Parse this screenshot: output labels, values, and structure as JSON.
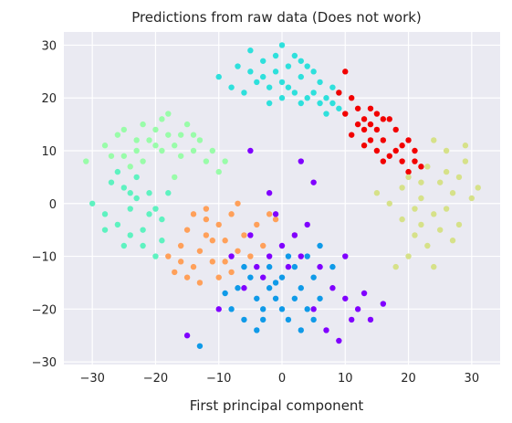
{
  "chart_data": {
    "type": "scatter",
    "title": "Predictions from raw data (Does not work)",
    "xlabel": "First principal component",
    "ylabel": "",
    "xlim": [
      -34.5,
      34.5
    ],
    "ylim": [
      -30.5,
      32.5
    ],
    "xticks": [
      -30,
      -20,
      -10,
      0,
      10,
      20,
      30
    ],
    "yticks": [
      -30,
      -20,
      -10,
      0,
      10,
      20,
      30
    ],
    "xtick_labels": [
      "−30",
      "−20",
      "−10",
      "0",
      "10",
      "20",
      "30"
    ],
    "ytick_labels": [
      "−30",
      "−20",
      "−10",
      "0",
      "10",
      "20",
      "30"
    ],
    "grid": true,
    "background": "#eaeaf2",
    "legend": "none",
    "series": [
      {
        "color": "#2ee0dc",
        "points": [
          [
            -10,
            24
          ],
          [
            -7,
            26
          ],
          [
            -5,
            29
          ],
          [
            -3,
            27
          ],
          [
            -1,
            25
          ],
          [
            0,
            30
          ],
          [
            1,
            22
          ],
          [
            3,
            24
          ],
          [
            5,
            21
          ],
          [
            7,
            20
          ],
          [
            9,
            18
          ],
          [
            -2,
            22
          ],
          [
            2,
            28
          ],
          [
            4,
            26
          ],
          [
            6,
            23
          ],
          [
            -4,
            23
          ],
          [
            8,
            22
          ],
          [
            0,
            20
          ],
          [
            -6,
            21
          ],
          [
            3,
            19
          ],
          [
            -1,
            28
          ],
          [
            5,
            25
          ],
          [
            2,
            21
          ],
          [
            -3,
            24
          ],
          [
            7,
            17
          ],
          [
            1,
            26
          ],
          [
            -8,
            22
          ],
          [
            4,
            20
          ],
          [
            6,
            19
          ],
          [
            -2,
            19
          ],
          [
            9,
            21
          ],
          [
            0,
            23
          ],
          [
            -5,
            25
          ],
          [
            3,
            27
          ],
          [
            8,
            19
          ]
        ]
      },
      {
        "color": "#f20000",
        "points": [
          [
            9,
            21
          ],
          [
            10,
            17
          ],
          [
            12,
            15
          ],
          [
            13,
            16
          ],
          [
            14,
            18
          ],
          [
            15,
            14
          ],
          [
            16,
            12
          ],
          [
            17,
            16
          ],
          [
            18,
            10
          ],
          [
            19,
            8
          ],
          [
            20,
            6
          ],
          [
            21,
            10
          ],
          [
            22,
            7
          ],
          [
            14,
            12
          ],
          [
            13,
            14
          ],
          [
            11,
            20
          ],
          [
            16,
            16
          ],
          [
            18,
            14
          ],
          [
            15,
            10
          ],
          [
            17,
            9
          ],
          [
            20,
            12
          ],
          [
            12,
            18
          ],
          [
            14,
            15
          ],
          [
            19,
            11
          ],
          [
            16,
            8
          ],
          [
            11,
            13
          ],
          [
            15,
            17
          ],
          [
            21,
            8
          ],
          [
            13,
            11
          ],
          [
            10,
            25
          ]
        ]
      },
      {
        "color": "#d6e189",
        "points": [
          [
            15,
            2
          ],
          [
            17,
            0
          ],
          [
            19,
            -3
          ],
          [
            21,
            -6
          ],
          [
            23,
            -8
          ],
          [
            25,
            -5
          ],
          [
            27,
            2
          ],
          [
            28,
            5
          ],
          [
            29,
            8
          ],
          [
            30,
            1
          ],
          [
            26,
            10
          ],
          [
            24,
            12
          ],
          [
            22,
            4
          ],
          [
            20,
            -10
          ],
          [
            18,
            -12
          ],
          [
            22,
            1
          ],
          [
            24,
            -2
          ],
          [
            26,
            -1
          ],
          [
            25,
            4
          ],
          [
            28,
            -4
          ],
          [
            23,
            7
          ],
          [
            21,
            -1
          ],
          [
            19,
            3
          ],
          [
            27,
            -7
          ],
          [
            24,
            -12
          ],
          [
            29,
            11
          ],
          [
            26,
            6
          ],
          [
            20,
            5
          ],
          [
            22,
            -4
          ],
          [
            31,
            3
          ]
        ]
      },
      {
        "color": "#99fca9",
        "points": [
          [
            -31,
            8
          ],
          [
            -28,
            11
          ],
          [
            -26,
            13
          ],
          [
            -25,
            9
          ],
          [
            -23,
            12
          ],
          [
            -22,
            15
          ],
          [
            -20,
            14
          ],
          [
            -18,
            17
          ],
          [
            -16,
            13
          ],
          [
            -14,
            10
          ],
          [
            -12,
            8
          ],
          [
            -19,
            10
          ],
          [
            -21,
            12
          ],
          [
            -24,
            7
          ],
          [
            -15,
            15
          ],
          [
            -17,
            11
          ],
          [
            -13,
            12
          ],
          [
            -11,
            10
          ],
          [
            -9,
            8
          ],
          [
            -27,
            9
          ],
          [
            -22,
            8
          ],
          [
            -18,
            13
          ],
          [
            -20,
            11
          ],
          [
            -25,
            14
          ],
          [
            -16,
            9
          ],
          [
            -14,
            13
          ],
          [
            -10,
            6
          ],
          [
            -23,
            10
          ],
          [
            -19,
            16
          ],
          [
            -17,
            5
          ]
        ]
      },
      {
        "color": "#5ef2c0",
        "points": [
          [
            -30,
            0
          ],
          [
            -28,
            -2
          ],
          [
            -26,
            -4
          ],
          [
            -24,
            -6
          ],
          [
            -22,
            -8
          ],
          [
            -20,
            -10
          ],
          [
            -25,
            3
          ],
          [
            -23,
            1
          ],
          [
            -21,
            -2
          ],
          [
            -19,
            -3
          ],
          [
            -27,
            4
          ],
          [
            -24,
            -1
          ],
          [
            -22,
            -5
          ],
          [
            -20,
            -1
          ],
          [
            -18,
            2
          ],
          [
            -26,
            6
          ],
          [
            -23,
            5
          ],
          [
            -25,
            -8
          ],
          [
            -19,
            -7
          ],
          [
            -21,
            2
          ],
          [
            -28,
            -5
          ],
          [
            -24,
            2
          ]
        ]
      },
      {
        "color": "#ffa05a",
        "points": [
          [
            -18,
            -10
          ],
          [
            -16,
            -8
          ],
          [
            -14,
            -12
          ],
          [
            -12,
            -6
          ],
          [
            -10,
            -4
          ],
          [
            -8,
            -2
          ],
          [
            -13,
            -9
          ],
          [
            -11,
            -11
          ],
          [
            -9,
            -7
          ],
          [
            -15,
            -5
          ],
          [
            -17,
            -13
          ],
          [
            -12,
            -3
          ],
          [
            -10,
            -14
          ],
          [
            -7,
            -9
          ],
          [
            -14,
            -2
          ],
          [
            -6,
            -6
          ],
          [
            -4,
            -4
          ],
          [
            -3,
            -8
          ],
          [
            -2,
            -2
          ],
          [
            -11,
            -7
          ],
          [
            -13,
            -15
          ],
          [
            -9,
            -11
          ],
          [
            -16,
            -11
          ],
          [
            -8,
            -13
          ],
          [
            -5,
            -10
          ],
          [
            -12,
            -1
          ],
          [
            -15,
            -14
          ],
          [
            -1,
            -3
          ],
          [
            2,
            -6
          ],
          [
            -7,
            0
          ]
        ]
      },
      {
        "color": "#8000ff",
        "points": [
          [
            -6,
            -16
          ],
          [
            -4,
            -12
          ],
          [
            -2,
            -10
          ],
          [
            0,
            -8
          ],
          [
            2,
            -6
          ],
          [
            4,
            -4
          ],
          [
            6,
            -12
          ],
          [
            8,
            -16
          ],
          [
            10,
            -18
          ],
          [
            12,
            -20
          ],
          [
            14,
            -22
          ],
          [
            16,
            -19
          ],
          [
            5,
            -20
          ],
          [
            7,
            -24
          ],
          [
            9,
            -26
          ],
          [
            11,
            -22
          ],
          [
            13,
            -17
          ],
          [
            -3,
            -14
          ],
          [
            1,
            -12
          ],
          [
            3,
            -10
          ],
          [
            -8,
            -10
          ],
          [
            -5,
            -6
          ],
          [
            -1,
            -2
          ],
          [
            5,
            4
          ],
          [
            3,
            8
          ],
          [
            -5,
            10
          ],
          [
            -2,
            2
          ],
          [
            10,
            -10
          ],
          [
            -10,
            -20
          ],
          [
            -15,
            -25
          ]
        ]
      },
      {
        "color": "#0f9ae8",
        "points": [
          [
            -8,
            -20
          ],
          [
            -6,
            -22
          ],
          [
            -4,
            -18
          ],
          [
            -2,
            -16
          ],
          [
            0,
            -14
          ],
          [
            2,
            -12
          ],
          [
            4,
            -10
          ],
          [
            6,
            -8
          ],
          [
            -5,
            -14
          ],
          [
            -3,
            -20
          ],
          [
            -1,
            -18
          ],
          [
            1,
            -22
          ],
          [
            3,
            -16
          ],
          [
            5,
            -14
          ],
          [
            -7,
            -16
          ],
          [
            0,
            -20
          ],
          [
            2,
            -18
          ],
          [
            -2,
            -12
          ],
          [
            4,
            -20
          ],
          [
            -4,
            -24
          ],
          [
            6,
            -18
          ],
          [
            -6,
            -12
          ],
          [
            8,
            -12
          ],
          [
            1,
            -10
          ],
          [
            -3,
            -22
          ],
          [
            3,
            -24
          ],
          [
            -1,
            -15
          ],
          [
            5,
            -22
          ],
          [
            -13,
            -27
          ],
          [
            -9,
            -17
          ]
        ]
      }
    ]
  }
}
